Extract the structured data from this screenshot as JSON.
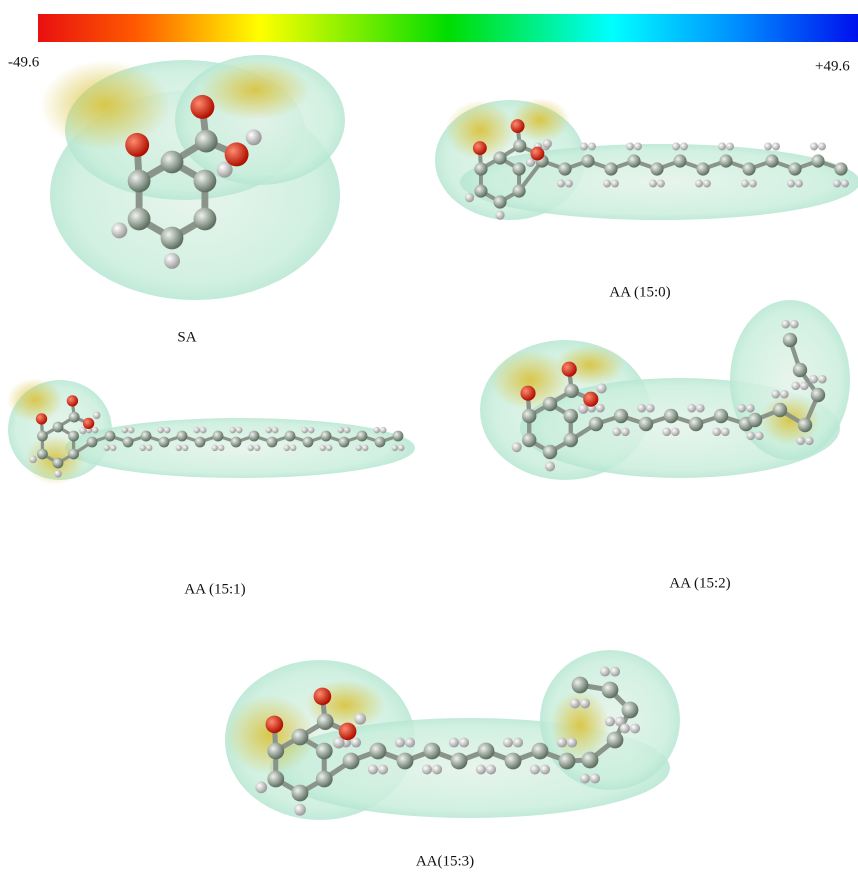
{
  "colorbar": {
    "min_label": "-49.6",
    "max_label": "+49.6"
  },
  "molecules": [
    {
      "label": "SA"
    },
    {
      "label": "AA (15:0)"
    },
    {
      "label": "AA (15:1)"
    },
    {
      "label": "AA (15:2)"
    },
    {
      "label": "AA(15:3)"
    }
  ]
}
